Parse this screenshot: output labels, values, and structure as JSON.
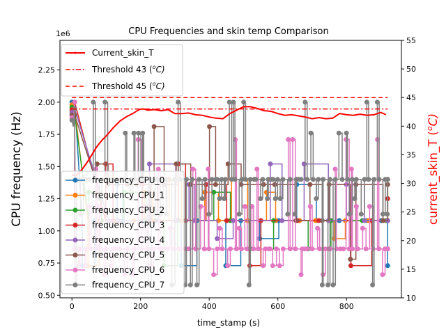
{
  "chart_data": {
    "type": "line",
    "title": "CPU Frequencies and skin temp Comparison",
    "xlabel": "time_stamp (s)",
    "ylabel_left": "CPU frequency (Hz)",
    "ylabel_right_main": "current_skin_T (",
    "ylabel_right_unit": "o",
    "ylabel_right_tail": "C)",
    "left_offset_label": "1e6",
    "xlim": [
      -35,
      960
    ],
    "ylim_left": [
      0.48,
      2.48
    ],
    "ylim_right": [
      10,
      55
    ],
    "x_ticks": [
      0,
      200,
      400,
      600,
      800
    ],
    "x_tick_labels": [
      "0",
      "200",
      "400",
      "600",
      "800"
    ],
    "y_left_ticks": [
      0.5,
      0.75,
      1.0,
      1.25,
      1.5,
      1.75,
      2.0,
      2.25
    ],
    "y_left_tick_labels": [
      "0.50",
      "0.75",
      "1.00",
      "1.25",
      "1.50",
      "1.75",
      "2.00",
      "2.25"
    ],
    "y_right_ticks": [
      10,
      15,
      20,
      25,
      30,
      35,
      40,
      45,
      50,
      55
    ],
    "y_right_tick_labels": [
      "10",
      "15",
      "20",
      "25",
      "30",
      "35",
      "40",
      "45",
      "50",
      "55"
    ],
    "grid": false,
    "legend_frequency_position": "lower-left",
    "legend_temperature_position": "upper-left",
    "temperature_series": [
      {
        "name": "Current_skin_T",
        "color": "#ff0000",
        "x": [
          0,
          10,
          20,
          30,
          40,
          50,
          60,
          70,
          80,
          90,
          100,
          110,
          120,
          130,
          140,
          150,
          160,
          170,
          180,
          190,
          200,
          210,
          220,
          240,
          260,
          280,
          300,
          320,
          340,
          360,
          380,
          400,
          420,
          440,
          460,
          480,
          500,
          520,
          540,
          560,
          580,
          600,
          620,
          640,
          660,
          680,
          700,
          720,
          740,
          760,
          780,
          800,
          820,
          840,
          860,
          880,
          900,
          915
        ],
        "y": [
          31.5,
          31.3,
          31.8,
          32.5,
          33.3,
          34.2,
          35.2,
          36.2,
          37.0,
          37.7,
          38.3,
          39.0,
          39.7,
          40.3,
          40.9,
          41.3,
          41.7,
          42.0,
          42.3,
          42.7,
          43.0,
          43.0,
          42.8,
          42.9,
          42.7,
          42.9,
          42.2,
          42.2,
          42.3,
          42.0,
          41.9,
          41.6,
          41.4,
          41.3,
          42.2,
          42.8,
          43.4,
          43.4,
          43.1,
          42.7,
          42.6,
          42.2,
          41.9,
          42.0,
          41.8,
          41.6,
          41.3,
          41.5,
          41.3,
          41.4,
          42.2,
          42.0,
          41.9,
          42.1,
          41.9,
          42.0,
          42.4,
          42.0
        ]
      },
      {
        "name": "Threshold 43 (",
        "unit": "o",
        "tail": "C)",
        "color": "#ff0000",
        "dash": "7,3,2,3",
        "value": 43
      },
      {
        "name": "Threshold 45 (",
        "unit": "o",
        "tail": "C)",
        "color": "#ff0000",
        "dash": "6,4",
        "value": 45
      }
    ],
    "frequency_levels": [
      0.58,
      0.66,
      0.73,
      0.78,
      0.86,
      0.94,
      1.02,
      1.08,
      1.13,
      1.19,
      1.25,
      1.3,
      1.36,
      1.4,
      1.48,
      1.52,
      1.61,
      1.71,
      1.76,
      1.81,
      1.91,
      2.0
    ],
    "frequency_series": [
      {
        "name": "frequency_CPU_0",
        "color": "#1f77b4",
        "levels": [
          0.73,
          0.94,
          1.08,
          1.25,
          1.36
        ],
        "base": 1.08,
        "segments": 8
      },
      {
        "name": "frequency_CPU_1",
        "color": "#ff7f0e",
        "levels": [
          0.73,
          0.94,
          1.08,
          1.3,
          1.4
        ],
        "base": 1.08,
        "segments": 8
      },
      {
        "name": "frequency_CPU_2",
        "color": "#2ca02c",
        "levels": [
          0.73,
          0.86,
          1.08,
          1.3,
          1.4
        ],
        "base": 1.08,
        "segments": 6
      },
      {
        "name": "frequency_CPU_3",
        "color": "#d62728",
        "levels": [
          0.73,
          1.08,
          1.25,
          1.36,
          1.52
        ],
        "base": 1.08,
        "segments": 6
      },
      {
        "name": "frequency_CPU_4",
        "color": "#9467bd",
        "levels": [
          0.94,
          1.08,
          1.36,
          1.52
        ],
        "base": 1.08,
        "segments": 6
      },
      {
        "name": "frequency_CPU_5",
        "color": "#8c564b",
        "levels": [
          0.78,
          1.08,
          1.36,
          1.52,
          1.81
        ],
        "base": 1.36,
        "segments": 8
      },
      {
        "name": "frequency_CPU_6",
        "color": "#e377c2",
        "levels": [
          0.66,
          0.73,
          0.86,
          1.02,
          1.19,
          1.48,
          1.71
        ],
        "base": 0.86,
        "segments": 40
      },
      {
        "name": "frequency_CPU_7",
        "color": "#7f7f7f",
        "levels": [
          0.58,
          1.13,
          1.25,
          1.4,
          1.76,
          2.0
        ],
        "base": 1.4,
        "segments": 48
      }
    ]
  }
}
